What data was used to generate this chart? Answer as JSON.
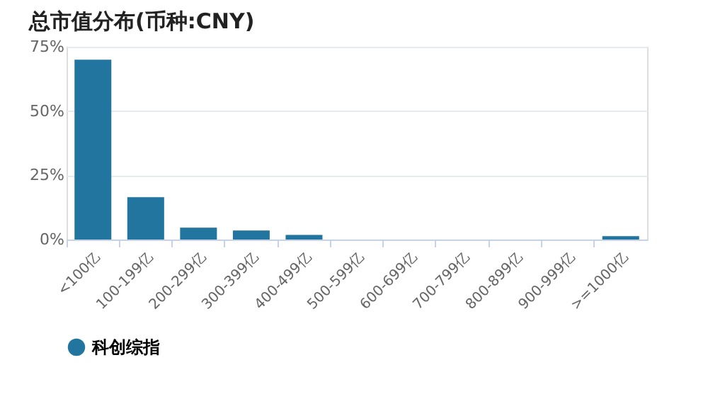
{
  "chart_data": {
    "type": "bar",
    "title": "总市值分布(币种:CNY)",
    "categories": [
      "<100亿",
      "100-199亿",
      "200-299亿",
      "300-399亿",
      "400-499亿",
      "500-599亿",
      "600-699亿",
      "700-799亿",
      "800-899亿",
      "900-999亿",
      ">=1000亿"
    ],
    "series": [
      {
        "name": "科创综指",
        "color": "#21759f",
        "values": [
          70.0,
          16.5,
          4.6,
          3.5,
          1.8,
          0,
          0,
          0,
          0,
          0,
          1.3
        ]
      }
    ],
    "ylim": [
      0,
      75
    ],
    "yticks": [
      {
        "value": 0,
        "label": "0%"
      },
      {
        "value": 25,
        "label": "25%"
      },
      {
        "value": 50,
        "label": "50%"
      },
      {
        "value": 75,
        "label": "75%"
      }
    ],
    "grid": "y",
    "legend": "bottom"
  }
}
